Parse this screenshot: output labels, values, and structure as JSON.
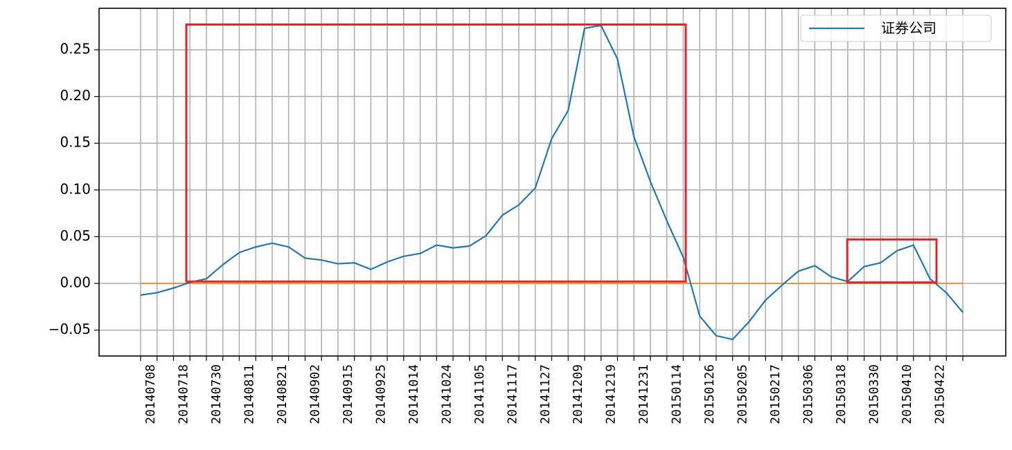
{
  "chart_data": {
    "type": "line",
    "categories": [
      "20140708",
      null,
      "20140718",
      null,
      "20140730",
      null,
      "20140811",
      null,
      "20140821",
      null,
      "20140902",
      null,
      "20140915",
      null,
      "20140925",
      null,
      "20141014",
      null,
      "20141024",
      null,
      "20141105",
      null,
      "20141117",
      null,
      "20141127",
      null,
      "20141209",
      null,
      "20141219",
      null,
      "20141231",
      null,
      "20150114",
      null,
      "20150126",
      null,
      "20150205",
      null,
      "20150217",
      null,
      "20150306",
      null,
      "20150318",
      null,
      "20150330",
      null,
      "20150410",
      null,
      "20150422",
      null,
      null
    ],
    "series": [
      {
        "name": "证券公司",
        "color": "#1f77b4",
        "values": [
          -0.0125,
          -0.01,
          -0.005,
          0.001,
          0.005,
          0.02,
          0.033,
          0.039,
          0.043,
          0.039,
          0.027,
          0.025,
          0.021,
          0.022,
          0.015,
          0.023,
          0.029,
          0.032,
          0.041,
          0.038,
          0.04,
          0.051,
          0.073,
          0.084,
          0.102,
          0.155,
          0.185,
          0.273,
          0.276,
          0.24,
          0.157,
          0.109,
          0.067,
          0.028,
          -0.035,
          -0.056,
          -0.06,
          -0.041,
          -0.018,
          -0.002,
          0.013,
          0.019,
          0.007,
          0.002,
          0.018,
          0.022,
          0.035,
          0.041,
          0.005,
          -0.01,
          -0.031
        ]
      }
    ],
    "reference_line": {
      "y": 0,
      "color": "#ff7f0e"
    },
    "highlights": [
      {
        "x_start": 2.78,
        "x_end": 33.15,
        "y_low": 0.002,
        "y_high": 0.277,
        "color": "#e0262b"
      },
      {
        "x_start": 42.97,
        "x_end": 48.4,
        "y_low": 0.001,
        "y_high": 0.047,
        "color": "#e0262b"
      }
    ],
    "ylim": [
      -0.0777,
      0.2944
    ],
    "yticks": [
      {
        "value": -0.05,
        "label": "−0.05"
      },
      {
        "value": 0,
        "label": "0.00"
      },
      {
        "value": 0.05,
        "label": "0.05"
      },
      {
        "value": 0.1,
        "label": "0.10"
      },
      {
        "value": 0.15,
        "label": "0.15"
      },
      {
        "value": 0.2,
        "label": "0.20"
      },
      {
        "value": 0.25,
        "label": "0.25"
      }
    ],
    "grid": true,
    "legend": "upper right"
  }
}
